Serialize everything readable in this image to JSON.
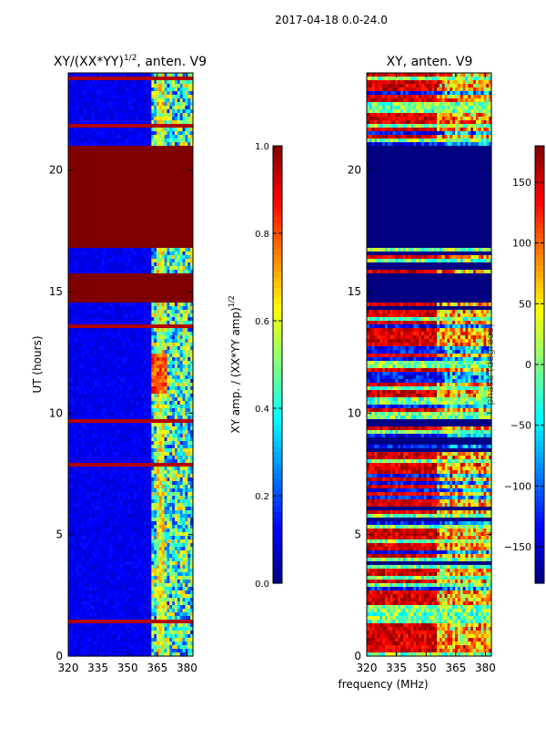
{
  "figure": {
    "suptitle": "2017-04-18 0.0-24.0",
    "shared_xlabel": "frequency (MHz)"
  },
  "chart_data": [
    {
      "type": "heatmap",
      "title": "XY/(XX*YY)",
      "title_superscript": "1/2",
      "title_suffix": ", anten. V9",
      "xlabel": "",
      "ylabel": "UT (hours)",
      "xlim": [
        320,
        383
      ],
      "ylim": [
        0,
        24
      ],
      "xticks": [
        320,
        335,
        350,
        365,
        380
      ],
      "yticks": [
        0,
        5,
        10,
        15,
        20
      ],
      "colormap": "jet",
      "colorbar": {
        "label": "XY amp. / (XX*YY amp)",
        "label_superscript": "1/2",
        "range": [
          0.0,
          1.0
        ],
        "ticks": [
          "0.0",
          "0.2",
          "0.4",
          "0.6",
          "0.8",
          "1.0"
        ]
      },
      "features": {
        "saturated_bands_hours": [
          [
            14.6,
            15.7
          ],
          [
            16.8,
            21.0
          ]
        ],
        "active_channel_range_mhz": [
          362,
          383
        ],
        "background_value": 0.08,
        "saturated_value": 1.0
      }
    },
    {
      "type": "heatmap",
      "title": "XY, anten. V9",
      "xlabel": "frequency (MHz)",
      "ylabel": "",
      "xlim": [
        320,
        383
      ],
      "ylim": [
        0,
        24
      ],
      "xticks": [
        320,
        335,
        350,
        365,
        380
      ],
      "yticks": [
        0,
        5,
        10,
        15,
        20
      ],
      "colormap": "jet",
      "colorbar": {
        "label": "phase (degrees)",
        "range": [
          -180,
          180
        ],
        "ticks": [
          "150",
          "100",
          "50",
          "0",
          "−50",
          "−100",
          "−150"
        ]
      },
      "features": {
        "low_phase_bands_hours": [
          [
            14.6,
            15.7
          ],
          [
            16.8,
            21.0
          ]
        ],
        "low_phase_value": -180
      }
    }
  ]
}
